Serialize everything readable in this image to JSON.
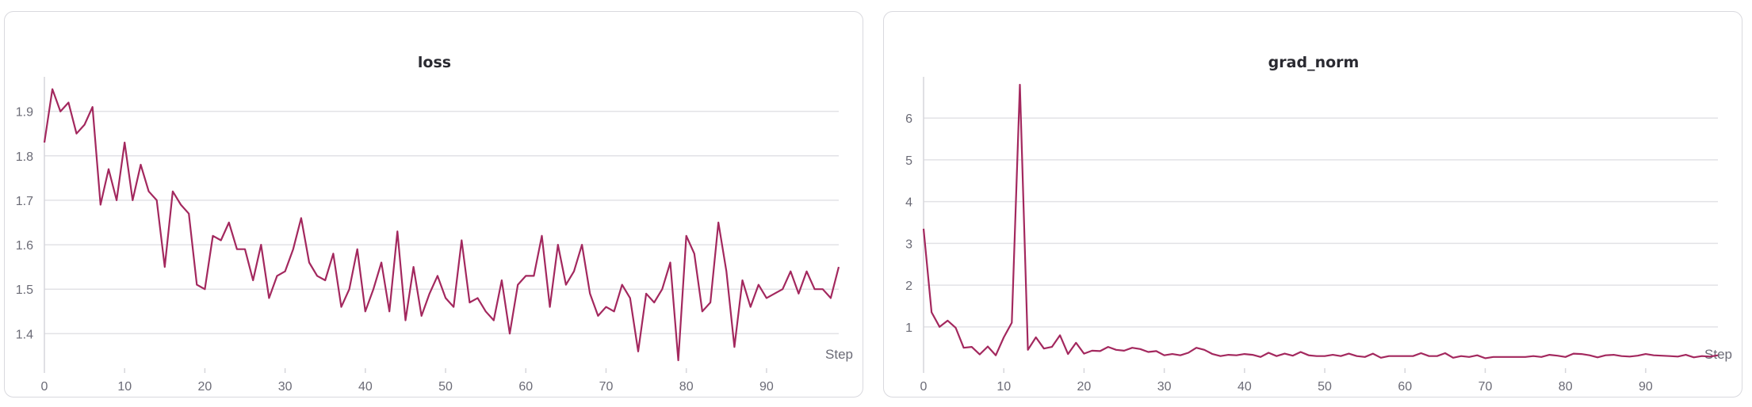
{
  "accent_color": "#a3285e",
  "chart_data": [
    {
      "type": "line",
      "title": "loss",
      "xlabel": "Step",
      "ylabel": "",
      "xlim": [
        0,
        99
      ],
      "ylim": [
        1.34,
        1.96
      ],
      "xticks": [
        0,
        10,
        20,
        30,
        40,
        50,
        60,
        70,
        80,
        90
      ],
      "yticks": [
        1.4,
        1.5,
        1.6,
        1.7,
        1.8,
        1.9
      ],
      "ytick_labels": [
        "1.4",
        "1.5",
        "1.6",
        "1.7",
        "1.8",
        "1.9"
      ],
      "grid": "horizontal",
      "series": [
        {
          "color": "#a3285e",
          "x": [
            0,
            1,
            2,
            3,
            4,
            5,
            6,
            7,
            8,
            9,
            10,
            11,
            12,
            13,
            14,
            15,
            16,
            17,
            18,
            19,
            20,
            21,
            22,
            23,
            24,
            25,
            26,
            27,
            28,
            29,
            30,
            31,
            32,
            33,
            34,
            35,
            36,
            37,
            38,
            39,
            40,
            41,
            42,
            43,
            44,
            45,
            46,
            47,
            48,
            49,
            50,
            51,
            52,
            53,
            54,
            55,
            56,
            57,
            58,
            59,
            60,
            61,
            62,
            63,
            64,
            65,
            66,
            67,
            68,
            69,
            70,
            71,
            72,
            73,
            74,
            75,
            76,
            77,
            78,
            79,
            80,
            81,
            82,
            83,
            84,
            85,
            86,
            87,
            88,
            89,
            90,
            91,
            92,
            93,
            94,
            95,
            96,
            97,
            98,
            99
          ],
          "values": [
            1.83,
            1.95,
            1.9,
            1.92,
            1.85,
            1.87,
            1.91,
            1.69,
            1.77,
            1.7,
            1.83,
            1.7,
            1.78,
            1.72,
            1.7,
            1.55,
            1.72,
            1.69,
            1.67,
            1.51,
            1.5,
            1.62,
            1.61,
            1.65,
            1.59,
            1.59,
            1.52,
            1.6,
            1.48,
            1.53,
            1.54,
            1.59,
            1.66,
            1.56,
            1.53,
            1.52,
            1.58,
            1.46,
            1.5,
            1.59,
            1.45,
            1.5,
            1.56,
            1.45,
            1.63,
            1.43,
            1.55,
            1.44,
            1.49,
            1.53,
            1.48,
            1.46,
            1.61,
            1.47,
            1.48,
            1.45,
            1.43,
            1.52,
            1.4,
            1.51,
            1.53,
            1.53,
            1.62,
            1.46,
            1.6,
            1.51,
            1.54,
            1.6,
            1.49,
            1.44,
            1.46,
            1.45,
            1.51,
            1.48,
            1.36,
            1.49,
            1.47,
            1.5,
            1.56,
            1.34,
            1.62,
            1.58,
            1.45,
            1.47,
            1.65,
            1.54,
            1.37,
            1.52,
            1.46,
            1.51,
            1.48,
            1.49,
            1.5,
            1.54,
            1.49,
            1.54,
            1.5,
            1.5,
            1.48,
            1.55
          ]
        }
      ]
    },
    {
      "type": "line",
      "title": "grad_norm",
      "xlabel": "Step",
      "ylabel": "",
      "xlim": [
        0,
        99
      ],
      "ylim": [
        0.2,
        6.8
      ],
      "xticks": [
        0,
        10,
        20,
        30,
        40,
        50,
        60,
        70,
        80,
        90
      ],
      "yticks": [
        1,
        2,
        3,
        4,
        5,
        6
      ],
      "ytick_labels": [
        "1",
        "2",
        "3",
        "4",
        "5",
        "6"
      ],
      "grid": "horizontal",
      "series": [
        {
          "color": "#a3285e",
          "x": [
            0,
            1,
            2,
            3,
            4,
            5,
            6,
            7,
            8,
            9,
            10,
            11,
            12,
            13,
            14,
            15,
            16,
            17,
            18,
            19,
            20,
            21,
            22,
            23,
            24,
            25,
            26,
            27,
            28,
            29,
            30,
            31,
            32,
            33,
            34,
            35,
            36,
            37,
            38,
            39,
            40,
            41,
            42,
            43,
            44,
            45,
            46,
            47,
            48,
            49,
            50,
            51,
            52,
            53,
            54,
            55,
            56,
            57,
            58,
            59,
            60,
            61,
            62,
            63,
            64,
            65,
            66,
            67,
            68,
            69,
            70,
            71,
            72,
            73,
            74,
            75,
            76,
            77,
            78,
            79,
            80,
            81,
            82,
            83,
            84,
            85,
            86,
            87,
            88,
            89,
            90,
            91,
            92,
            93,
            94,
            95,
            96,
            97,
            98,
            99
          ],
          "values": [
            3.35,
            1.35,
            1.0,
            1.15,
            0.98,
            0.5,
            0.52,
            0.34,
            0.53,
            0.32,
            0.75,
            1.1,
            6.8,
            0.45,
            0.75,
            0.48,
            0.52,
            0.8,
            0.35,
            0.62,
            0.36,
            0.43,
            0.42,
            0.52,
            0.45,
            0.43,
            0.5,
            0.47,
            0.4,
            0.42,
            0.32,
            0.35,
            0.32,
            0.38,
            0.5,
            0.45,
            0.35,
            0.3,
            0.33,
            0.32,
            0.35,
            0.33,
            0.28,
            0.38,
            0.3,
            0.36,
            0.31,
            0.4,
            0.32,
            0.3,
            0.3,
            0.33,
            0.3,
            0.36,
            0.3,
            0.28,
            0.36,
            0.26,
            0.3,
            0.3,
            0.3,
            0.3,
            0.37,
            0.3,
            0.3,
            0.37,
            0.26,
            0.3,
            0.28,
            0.32,
            0.25,
            0.28,
            0.28,
            0.28,
            0.28,
            0.28,
            0.3,
            0.28,
            0.33,
            0.31,
            0.28,
            0.36,
            0.35,
            0.32,
            0.27,
            0.32,
            0.33,
            0.3,
            0.29,
            0.31,
            0.35,
            0.32,
            0.31,
            0.3,
            0.29,
            0.33,
            0.27,
            0.3,
            0.29,
            0.32
          ]
        }
      ]
    }
  ]
}
